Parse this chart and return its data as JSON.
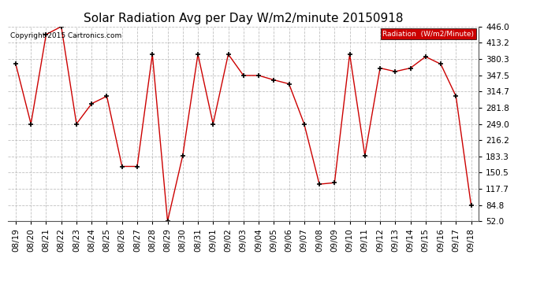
{
  "title": "Solar Radiation Avg per Day W/m2/minute 20150918",
  "copyright": "Copyright 2015 Cartronics.com",
  "legend_label": "Radiation  (W/m2/Minute)",
  "dates": [
    "08/19",
    "08/20",
    "08/21",
    "08/22",
    "08/23",
    "08/24",
    "08/25",
    "08/26",
    "08/27",
    "08/28",
    "08/29",
    "08/30",
    "08/31",
    "09/01",
    "09/02",
    "09/03",
    "09/04",
    "09/05",
    "09/06",
    "09/07",
    "09/08",
    "09/09",
    "09/10",
    "09/11",
    "09/12",
    "09/13",
    "09/14",
    "09/15",
    "09/16",
    "09/17",
    "09/18"
  ],
  "values": [
    370,
    249,
    430,
    446,
    249,
    290,
    305,
    163,
    163,
    390,
    52,
    185,
    390,
    249,
    390,
    347,
    347,
    338,
    330,
    249,
    127,
    130,
    390,
    185,
    362,
    355,
    362,
    385,
    370,
    305,
    84
  ],
  "ylim": [
    52.0,
    446.0
  ],
  "yticks": [
    52.0,
    84.8,
    117.7,
    150.5,
    183.3,
    216.2,
    249.0,
    281.8,
    314.7,
    347.5,
    380.3,
    413.2,
    446.0
  ],
  "ytick_labels": [
    "52.0",
    "84.8",
    "117.7",
    "150.5",
    "183.3",
    "216.2",
    "249.0",
    "281.8",
    "314.7",
    "347.5",
    "380.3",
    "413.2",
    "446.0"
  ],
  "line_color": "#cc0000",
  "marker_color": "#000000",
  "bg_color": "#ffffff",
  "plot_bg": "#ffffff",
  "grid_color": "#b0b0b0",
  "title_fontsize": 11,
  "tick_fontsize": 7.5,
  "legend_bg": "#cc0000",
  "legend_fg": "#ffffff"
}
